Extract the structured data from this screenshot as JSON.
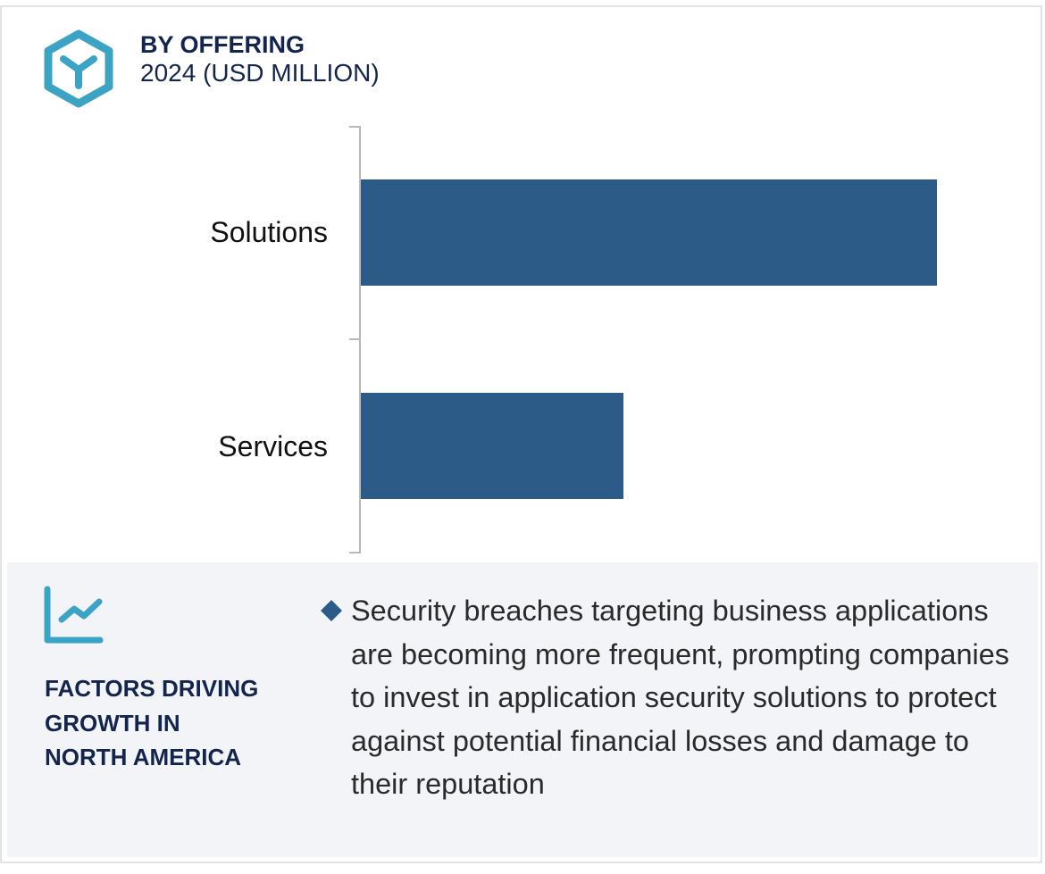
{
  "header": {
    "icon": "hexagon-y-icon",
    "title": "BY OFFERING",
    "subtitle": "2024 (USD MILLION)"
  },
  "chart_data": {
    "type": "bar",
    "orientation": "horizontal",
    "title": "BY OFFERING",
    "subtitle": "2024 (USD MILLION)",
    "categories": [
      "Solutions",
      "Services"
    ],
    "values": [
      100,
      45.6
    ],
    "value_note": "No numeric axis or data labels shown; values are relative bar lengths (Solutions = 100)",
    "xlabel": "",
    "ylabel": "",
    "grid": false,
    "legend": null,
    "bar_color": "#2d5b88"
  },
  "chart": {
    "bars": [
      {
        "label": "Solutions",
        "relative": 100
      },
      {
        "label": "Services",
        "relative": 45.6
      }
    ]
  },
  "factors": {
    "icon": "line-chart-growth-icon",
    "heading_lines": [
      "FACTORS DRIVING",
      "GROWTH IN",
      "NORTH AMERICA"
    ],
    "bullet_icon": "diamond-bullet-icon",
    "bullet_text": "Security breaches targeting business applications are becoming more frequent, prompting companies to invest in application security solutions to protect against potential financial losses and damage to their reputation"
  },
  "colors": {
    "title": "#13254e",
    "bar": "#2d5b88",
    "icon_accent": "#3ba3c4",
    "panel_bg": "#f3f4f8",
    "axis": "#b9b9b9"
  }
}
